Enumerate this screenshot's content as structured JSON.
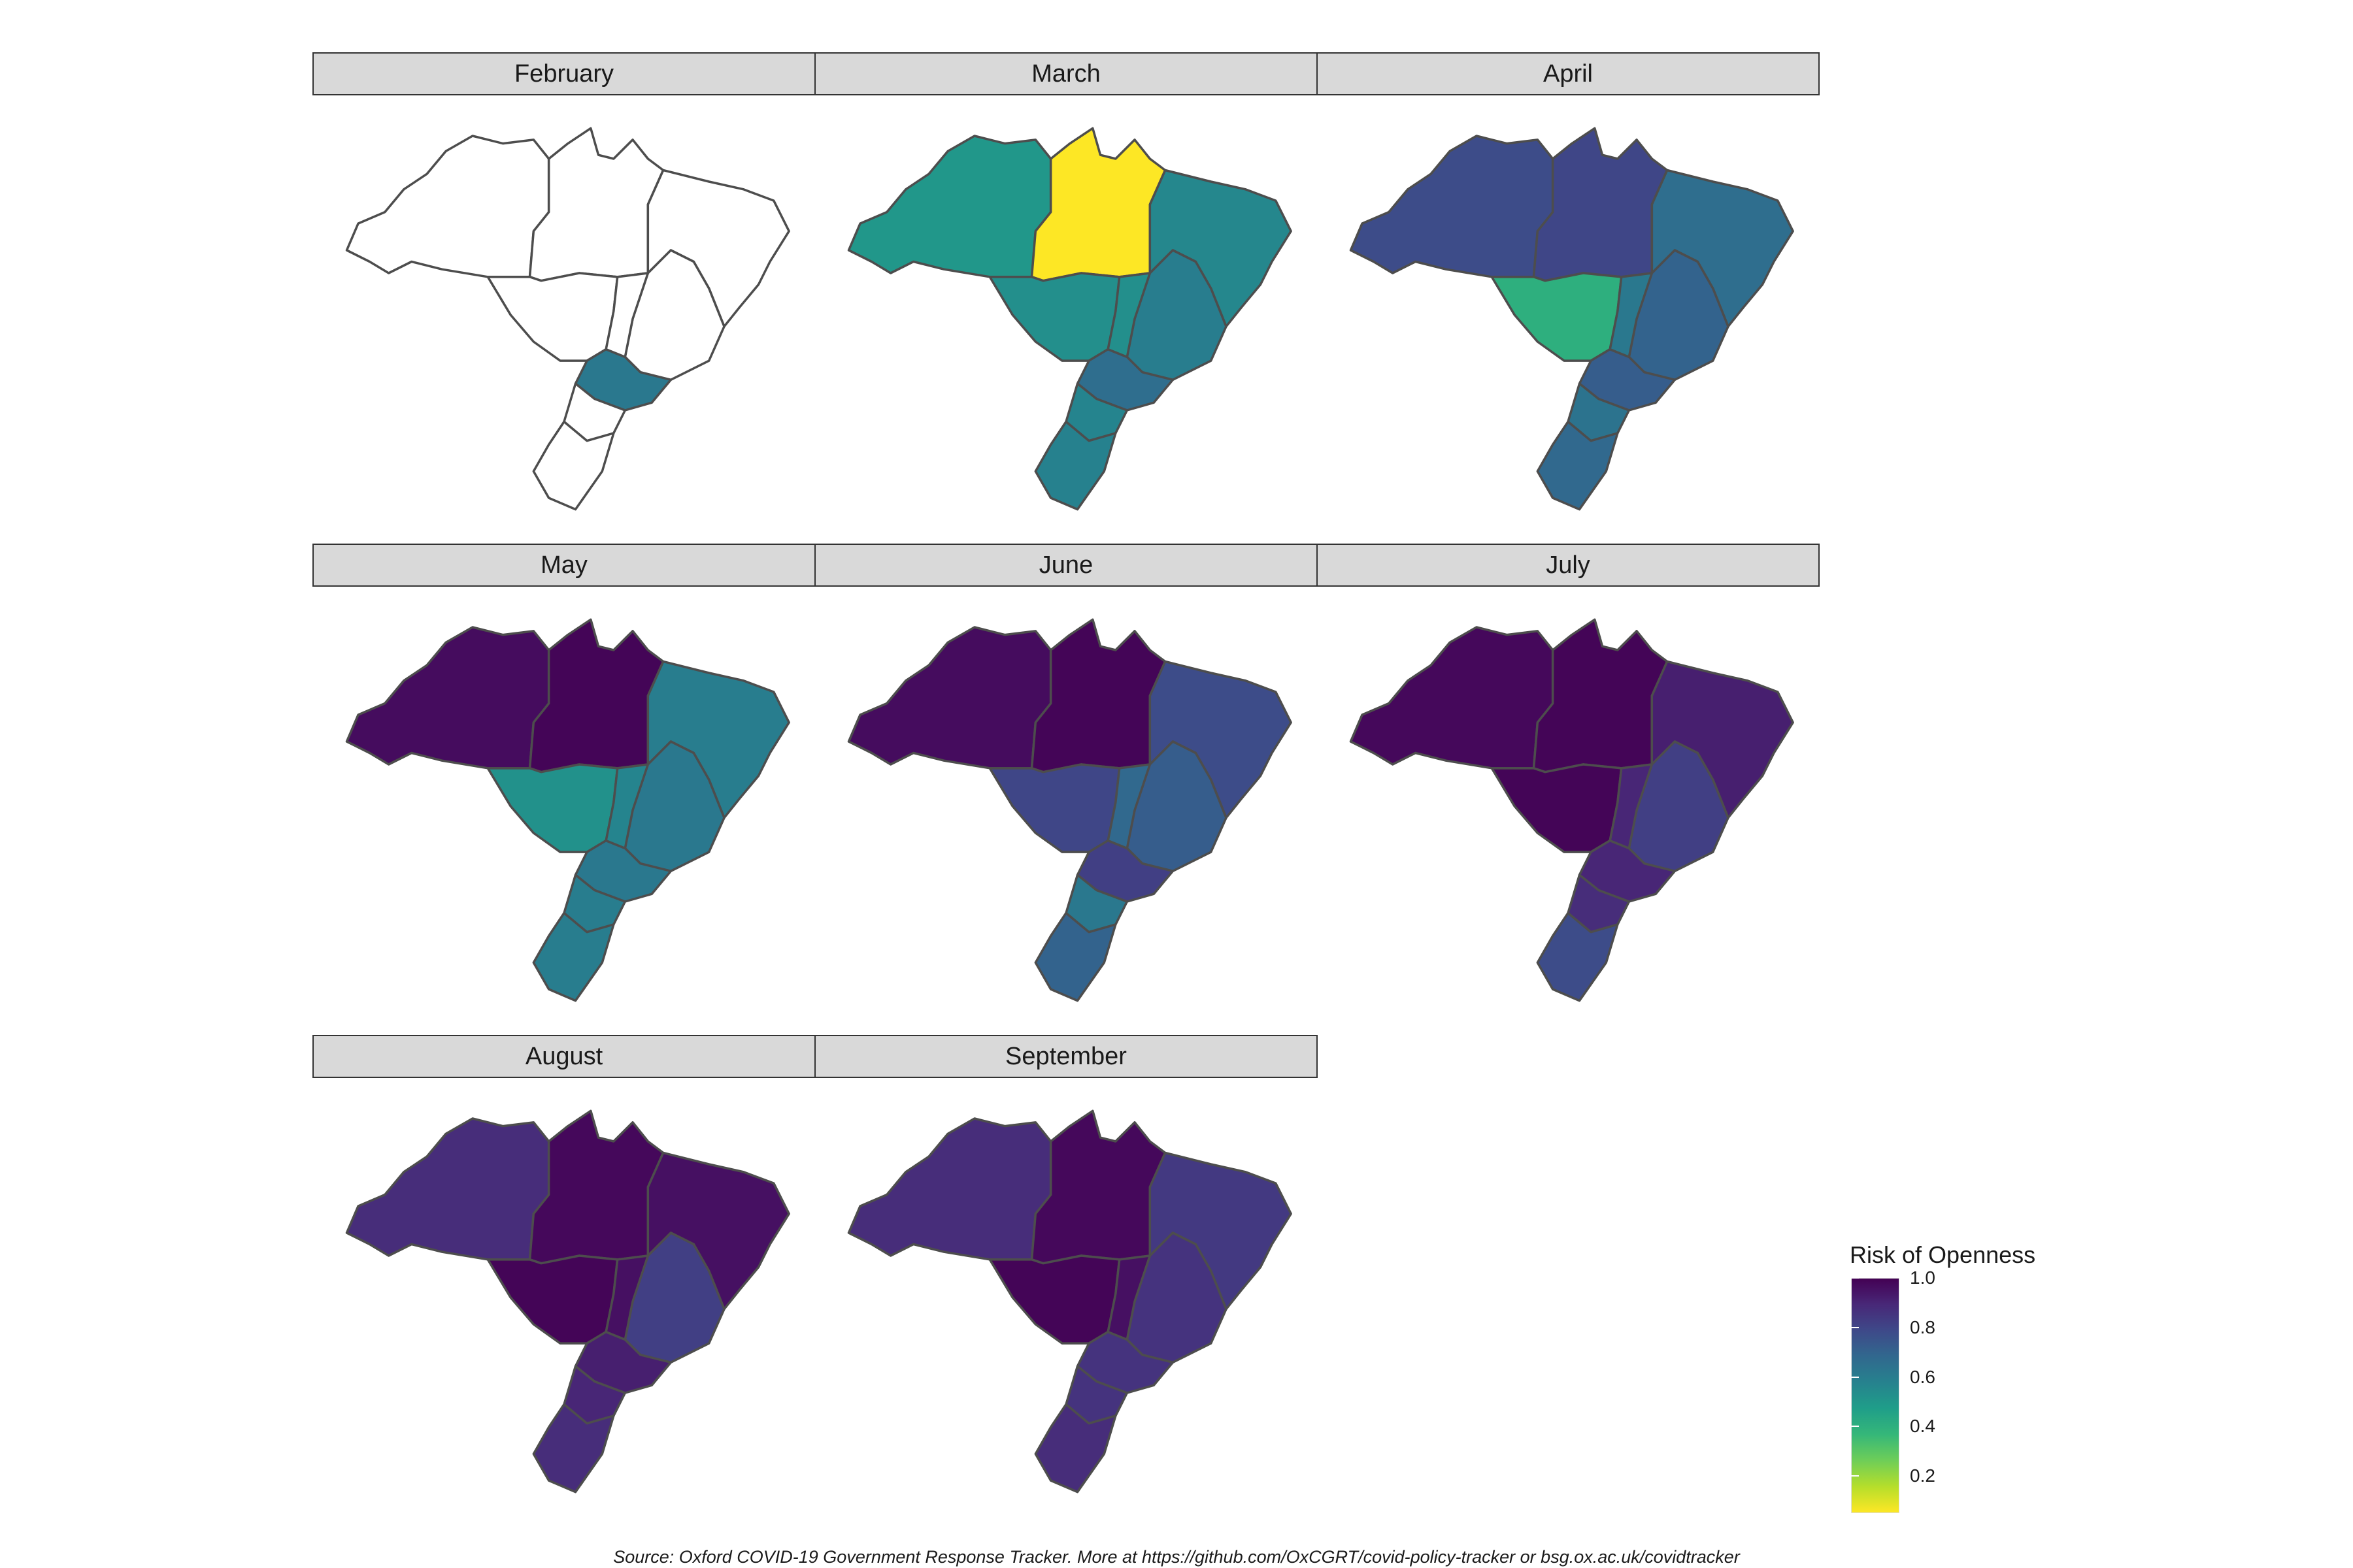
{
  "legend": {
    "title": "Risk of Openness",
    "ticks": [
      {
        "label": "1.0",
        "value": 1.0
      },
      {
        "label": "0.8",
        "value": 0.8
      },
      {
        "label": "0.6",
        "value": 0.6
      },
      {
        "label": "0.4",
        "value": 0.4
      },
      {
        "label": "0.2",
        "value": 0.2
      }
    ],
    "range": [
      0.05,
      1.0
    ],
    "colors": [
      "#fde725",
      "#b5de2b",
      "#6ece58",
      "#35b779",
      "#1f9e89",
      "#26828e",
      "#31688e",
      "#3e4989",
      "#482878",
      "#440154"
    ]
  },
  "caption": "Source: Oxford COVID-19 Government Response Tracker. More at https://github.com/OxCGRT/covid-policy-tracker or bsg.ox.ac.uk/covidtracker",
  "panels": [
    {
      "month": "February",
      "states": {
        "AM": null,
        "PA": null,
        "MT": null,
        "BA": null,
        "MG": null,
        "SP": 0.62,
        "RS": null,
        "PR": null,
        "GO": null
      }
    },
    {
      "month": "March",
      "states": {
        "AM": 0.5,
        "PA": 0.05,
        "MT": 0.53,
        "BA": 0.56,
        "MG": 0.6,
        "SP": 0.66,
        "RS": 0.58,
        "PR": 0.57,
        "GO": 0.53
      }
    },
    {
      "month": "April",
      "states": {
        "AM": 0.78,
        "PA": 0.8,
        "MT": 0.4,
        "BA": 0.66,
        "MG": 0.7,
        "SP": 0.72,
        "RS": 0.68,
        "PR": 0.64,
        "GO": 0.62
      }
    },
    {
      "month": "May",
      "states": {
        "AM": 0.97,
        "PA": 0.99,
        "MT": 0.52,
        "BA": 0.6,
        "MG": 0.62,
        "SP": 0.62,
        "RS": 0.6,
        "PR": 0.6,
        "GO": 0.57
      }
    },
    {
      "month": "June",
      "states": {
        "AM": 0.97,
        "PA": 0.99,
        "MT": 0.8,
        "BA": 0.78,
        "MG": 0.72,
        "SP": 0.82,
        "RS": 0.7,
        "PR": 0.62,
        "GO": 0.68
      }
    },
    {
      "month": "July",
      "states": {
        "AM": 0.98,
        "PA": 0.99,
        "MT": 0.99,
        "BA": 0.92,
        "MG": 0.82,
        "SP": 0.9,
        "RS": 0.78,
        "PR": 0.88,
        "GO": 0.9
      }
    },
    {
      "month": "August",
      "states": {
        "AM": 0.88,
        "PA": 0.98,
        "MT": 0.99,
        "BA": 0.96,
        "MG": 0.82,
        "SP": 0.92,
        "RS": 0.88,
        "PR": 0.9,
        "GO": 0.96
      }
    },
    {
      "month": "September",
      "states": {
        "AM": 0.88,
        "PA": 0.98,
        "MT": 0.99,
        "BA": 0.84,
        "MG": 0.86,
        "SP": 0.86,
        "RS": 0.88,
        "PR": 0.86,
        "GO": 0.96
      }
    }
  ]
}
